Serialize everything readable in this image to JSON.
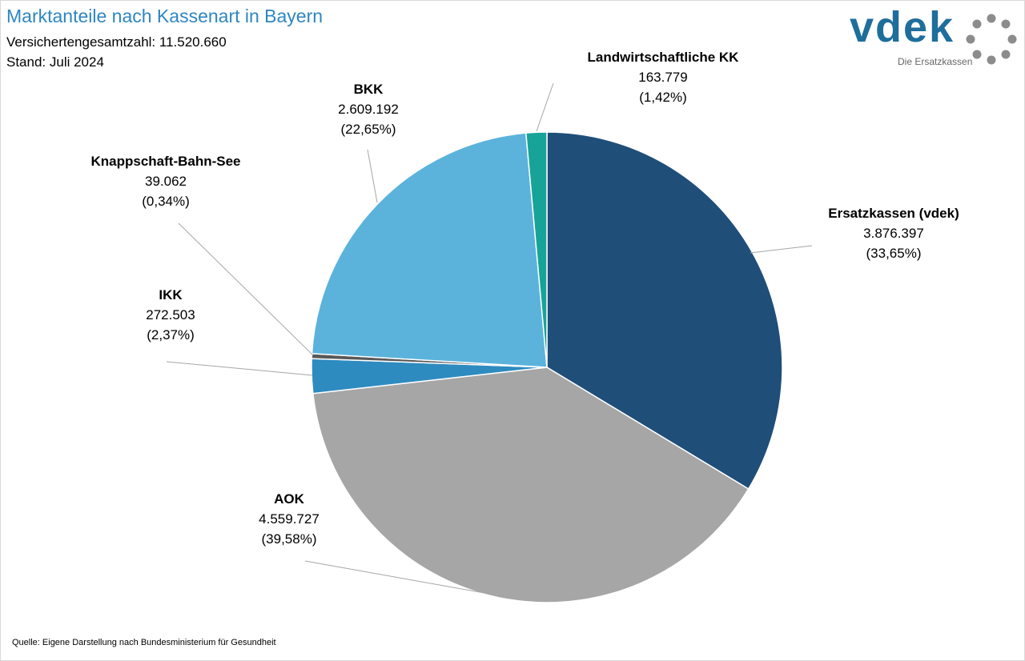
{
  "header": {
    "title": "Marktanteile nach Kassenart in Bayern",
    "subtitle_total": "Versichertengesamtzahl: 11.520.660",
    "subtitle_date": "Stand: Juli 2024"
  },
  "logo": {
    "wordmark": "vdek",
    "tagline": "Die Ersatzkassen",
    "icon": "dotted-ring-icon"
  },
  "footer": {
    "source": "Quelle: Eigene Darstellung nach Bundesministerium für Gesundheit"
  },
  "colors": {
    "title": "#2e86c1",
    "ersatzkassen": "#1f4e79",
    "aok": "#a6a6a6",
    "ikk": "#2e8bc0",
    "knappschaft": "#595959",
    "bkk": "#5bb3dc",
    "landwirtschaft": "#17a398"
  },
  "chart_data": {
    "type": "pie",
    "title": "Marktanteile nach Kassenart in Bayern",
    "start": "top, clockwise",
    "slices": [
      {
        "label": "Ersatzkassen (vdek)",
        "value": 3876397,
        "value_text": "3.876.397",
        "percent": 33.65,
        "percent_text": "(33,65%)",
        "color": "#1f4e79"
      },
      {
        "label": "AOK",
        "value": 4559727,
        "value_text": "4.559.727",
        "percent": 39.58,
        "percent_text": "(39,58%)",
        "color": "#a6a6a6"
      },
      {
        "label": "IKK",
        "value": 272503,
        "value_text": "272.503",
        "percent": 2.37,
        "percent_text": "(2,37%)",
        "color": "#2e8bc0"
      },
      {
        "label": "Knappschaft-Bahn-See",
        "value": 39062,
        "value_text": "39.062",
        "percent": 0.34,
        "percent_text": "(0,34%)",
        "color": "#595959"
      },
      {
        "label": "BKK",
        "value": 2609192,
        "value_text": "2.609.192",
        "percent": 22.65,
        "percent_text": "(22,65%)",
        "color": "#5bb3dc"
      },
      {
        "label": "Landwirtschaftliche KK",
        "value": 163779,
        "value_text": "163.779",
        "percent": 1.42,
        "percent_text": "(1,42%)",
        "color": "#17a398"
      }
    ]
  }
}
